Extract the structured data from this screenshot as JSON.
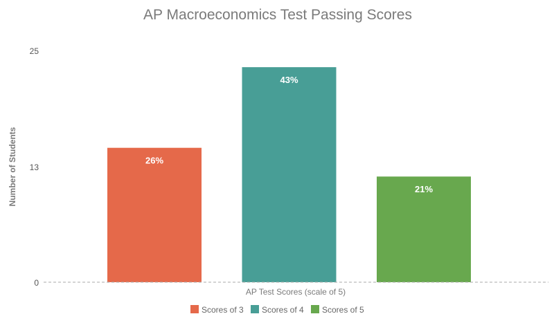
{
  "chart_data": {
    "type": "bar",
    "title": "AP Macroeconomics Test Passing Scores",
    "xlabel": "AP Test Scores (scale of 5)",
    "ylabel": "Number of Students",
    "ylim": [
      0,
      25
    ],
    "yticks": [
      "0",
      "13",
      "25"
    ],
    "grid": false,
    "legend_position": "bottom",
    "series": [
      {
        "name": "Scores of 3",
        "value": 14.5,
        "label": "26%",
        "color": "#e5694a"
      },
      {
        "name": "Scores of 4",
        "value": 23.2,
        "label": "43%",
        "color": "#489e96"
      },
      {
        "name": "Scores of 5",
        "value": 11.4,
        "label": "21%",
        "color": "#68a84e"
      }
    ]
  }
}
